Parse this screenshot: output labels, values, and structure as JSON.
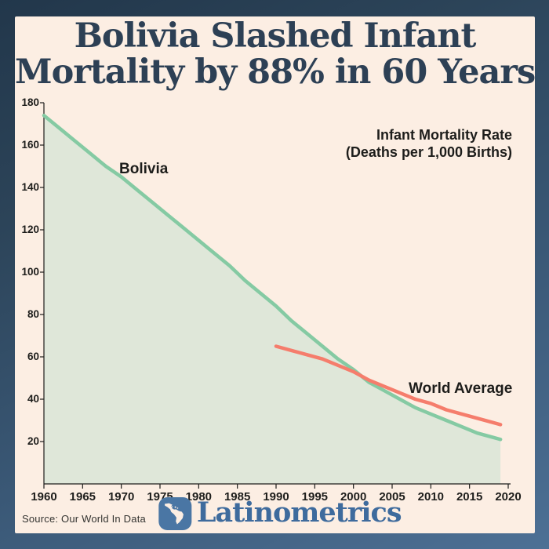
{
  "frame": {
    "gradient_start": "#22374b",
    "gradient_end": "#4d7095",
    "card_background": "#fceee3"
  },
  "title": {
    "line1": "Bolivia Slashed Infant",
    "line2": "Mortality by 88% in 60 Years",
    "color": "#2d4055"
  },
  "chart_data": {
    "type": "line",
    "title": "Bolivia Slashed Infant Mortality by 88% in 60 Years",
    "legend_title_line1": "Infant Mortality Rate",
    "legend_title_line2": "(Deaths per 1,000 Births)",
    "xlabel": "",
    "ylabel": "",
    "xlim": [
      1960,
      2020
    ],
    "ylim": [
      0,
      180
    ],
    "grid": false,
    "x_ticks": [
      1960,
      1965,
      1970,
      1975,
      1980,
      1985,
      1990,
      1995,
      2000,
      2005,
      2010,
      2015,
      2020
    ],
    "y_ticks": [
      20,
      40,
      60,
      80,
      100,
      120,
      140,
      160,
      180
    ],
    "axis_color": "#1d1d1b",
    "series": [
      {
        "name": "Bolivia",
        "color": "#85caa3",
        "fill_color": "#dfe7d9",
        "x": [
          1960,
          1962,
          1964,
          1966,
          1968,
          1970,
          1972,
          1974,
          1976,
          1978,
          1980,
          1982,
          1984,
          1986,
          1988,
          1990,
          1992,
          1994,
          1996,
          1998,
          2000,
          2002,
          2004,
          2006,
          2008,
          2010,
          2012,
          2014,
          2016,
          2018,
          2019
        ],
        "y": [
          174,
          168,
          162,
          156,
          150,
          145,
          139,
          133,
          127,
          121,
          115,
          109,
          103,
          96,
          90,
          84,
          77,
          71,
          65,
          59,
          54,
          48,
          44,
          40,
          36,
          33,
          30,
          27,
          24,
          22,
          21
        ]
      },
      {
        "name": "World Average",
        "color": "#f57d6c",
        "fill_color": null,
        "x": [
          1990,
          1992,
          1994,
          1996,
          1998,
          2000,
          2002,
          2004,
          2006,
          2008,
          2010,
          2012,
          2014,
          2016,
          2018,
          2019
        ],
        "y": [
          65,
          63,
          61,
          59,
          56,
          53,
          49,
          46,
          43,
          40,
          38,
          35,
          33,
          31,
          29,
          28
        ]
      }
    ]
  },
  "footer": {
    "source": "Source: Our World In Data",
    "logo_text": "Latinometrics",
    "logo_text_color": "#3e6b9d",
    "logo_icon_color": "#4a76a4",
    "logo_icon_name": "latin-america-map-icon"
  }
}
